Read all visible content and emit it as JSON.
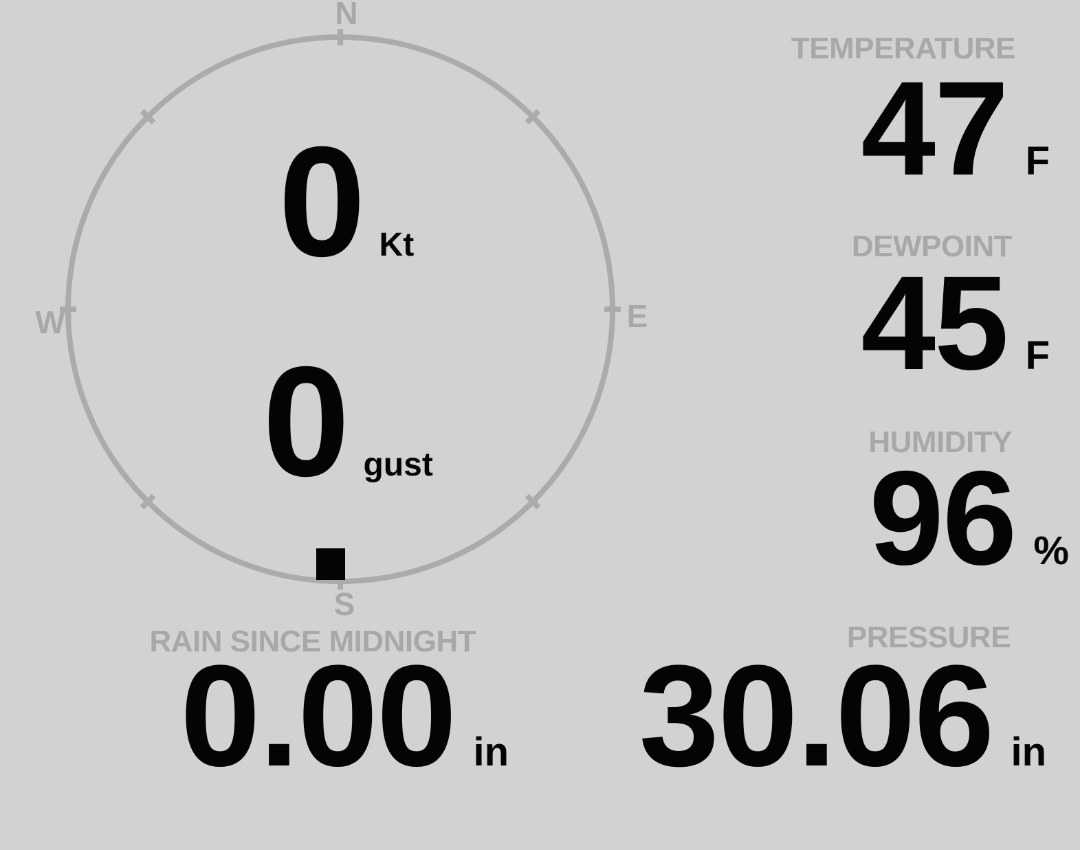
{
  "theme": {
    "bg": "#d2d2d2",
    "muted": "#a8a8a8",
    "ring": "#ababab",
    "ink": "#040404"
  },
  "wind_gauge": {
    "compass_labels": {
      "north": "N",
      "east": "E",
      "south": "S",
      "west": "W"
    },
    "speed": {
      "value": "0",
      "unit": "Kt"
    },
    "gust": {
      "value": "0",
      "unit": "gust"
    },
    "direction": "S"
  },
  "metrics": {
    "temperature": {
      "label": "TEMPERATURE",
      "value": "47",
      "unit": "F"
    },
    "dewpoint": {
      "label": "DEWPOINT",
      "value": "45",
      "unit": "F"
    },
    "humidity": {
      "label": "HUMIDITY",
      "value": "96",
      "unit": "%"
    },
    "rain": {
      "label": "RAIN SINCE MIDNIGHT",
      "value": "0.00",
      "unit": "in"
    },
    "pressure": {
      "label": "PRESSURE",
      "value": "30.06",
      "unit": "in"
    }
  }
}
